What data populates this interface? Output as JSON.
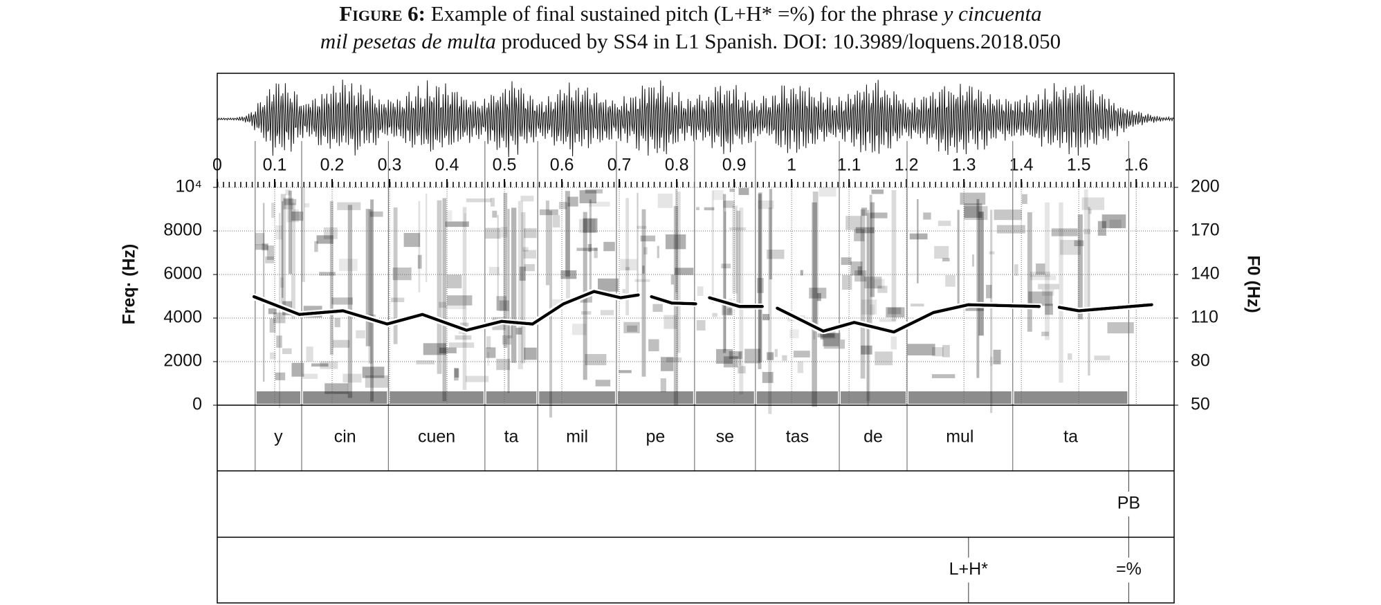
{
  "chart_data": {
    "type": "spectrogram",
    "caption_label": "Figure 6:",
    "caption_text_1": "Example of final sustained pitch (L+H* =%) for the phrase",
    "caption_phrase_1": "y cincuenta",
    "caption_phrase_2": "mil pesetas de multa",
    "caption_text_2": "produced by SS4 in L1 Spanish. DOI: 10.3989/loquens.2018.050",
    "ylabel": "Freq· (Hz)",
    "y2label": "F0 (Hz)",
    "xlim": [
      0,
      1.666
    ],
    "xticks": [
      0,
      0.1,
      0.2,
      0.3,
      0.4,
      0.5,
      0.6,
      0.7,
      0.8,
      0.9,
      1,
      1.1,
      1.2,
      1.3,
      1.4,
      1.5,
      1.6
    ],
    "ylim": [
      0,
      10000
    ],
    "yticks": [
      0,
      2000,
      4000,
      6000,
      8000,
      {
        "value": 10000,
        "label": "10⁴"
      }
    ],
    "y2lim": [
      50,
      200
    ],
    "y2ticks": [
      50,
      80,
      110,
      140,
      170,
      200
    ],
    "grid": true,
    "series": [
      {
        "name": "F0",
        "axis": "y2",
        "color": "#000000",
        "x": [
          0.064,
          0.143,
          0.219,
          0.296,
          0.357,
          0.434,
          0.495,
          0.549,
          0.603,
          0.656,
          0.702,
          0.733,
          0.745,
          0.756,
          0.791,
          0.833,
          0.845,
          0.857,
          0.909,
          0.949,
          0.962,
          0.975,
          1.055,
          1.109,
          1.178,
          1.247,
          1.308,
          1.431,
          1.448,
          1.466,
          1.5,
          1.554,
          1.627
        ],
        "values": [
          124.7,
          112.5,
          115,
          105.9,
          112.5,
          101.6,
          107.7,
          105.9,
          119.8,
          128.3,
          124,
          125.9,
          null,
          124.7,
          120.4,
          119.8,
          null,
          124,
          118,
          118,
          null,
          116.8,
          101,
          107,
          100.4,
          113.8,
          119.2,
          118,
          null,
          117.4,
          115,
          116.8,
          119.2
        ]
      }
    ],
    "tiers": [
      {
        "type": "interval",
        "boundaries": [
          0.066,
          0.147,
          0.298,
          0.466,
          0.558,
          0.695,
          0.831,
          0.937,
          1.083,
          1.201,
          1.385,
          1.587
        ],
        "labels": [
          null,
          "y",
          "cin",
          "cuen",
          "ta",
          "mil",
          "pe",
          "se",
          "tas",
          "de",
          "mul",
          "ta",
          null
        ]
      },
      {
        "type": "point",
        "times": [
          1.587
        ],
        "labels": [
          "PB"
        ]
      },
      {
        "type": "point",
        "times": [
          1.308,
          1.587
        ],
        "labels": [
          "L+H*",
          "=%"
        ]
      }
    ]
  }
}
